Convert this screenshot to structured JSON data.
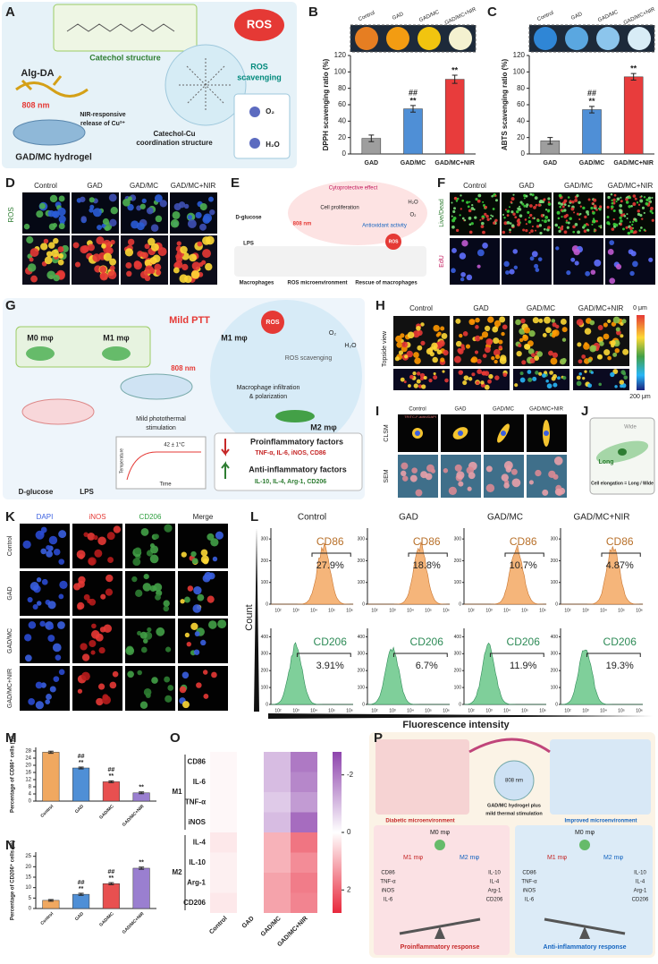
{
  "A": {
    "letter": "A",
    "labels": [
      "Alg-DA",
      "Catechol structure",
      "808 nm",
      "NIR-responsive",
      "release of Cu²⁺",
      "GAD/MC hydrogel",
      "Catechol-Cu",
      "coordination structure",
      "ROS",
      "ROS",
      "scavenging",
      "O₂",
      "H₂O"
    ]
  },
  "B": {
    "letter": "B",
    "type": "bar",
    "tubes": [
      "Control",
      "GAD",
      "GAD/MC",
      "GAD/MC+NIR"
    ],
    "categories": [
      "GAD",
      "GAD/MC",
      "GAD/MC+NIR"
    ],
    "values": [
      19,
      55,
      91
    ],
    "errors": [
      4,
      4,
      5
    ],
    "colors": [
      "#9e9e9e",
      "#4f8fd6",
      "#e83c3c"
    ],
    "ylim": [
      0,
      120
    ],
    "yticks": [
      0,
      20,
      40,
      60,
      80,
      100,
      120
    ],
    "ylabel": "DPPH scavenging ratio (%)",
    "hash": [
      null,
      "##",
      null
    ],
    "star": [
      null,
      "**",
      "**"
    ]
  },
  "C": {
    "letter": "C",
    "type": "bar",
    "tubes": [
      "Control",
      "GAD",
      "GAD/MC",
      "GAD/MC+NIR"
    ],
    "categories": [
      "GAD",
      "GAD/MC",
      "GAD/MC+NIR"
    ],
    "values": [
      16,
      54,
      94
    ],
    "errors": [
      4,
      4,
      4
    ],
    "colors": [
      "#9e9e9e",
      "#4f8fd6",
      "#e83c3c"
    ],
    "ylim": [
      0,
      120
    ],
    "yticks": [
      0,
      20,
      40,
      60,
      80,
      100,
      120
    ],
    "ylabel": "ABTS scavenging ratio (%)",
    "hash": [
      null,
      "##",
      null
    ],
    "star": [
      null,
      "**",
      "**"
    ]
  },
  "D": {
    "letter": "D",
    "columns": [
      "Control",
      "GAD",
      "GAD/MC",
      "GAD/MC+NIR"
    ],
    "row": "ROS"
  },
  "E": {
    "letter": "E",
    "labels": [
      "Cytoprotective effect",
      "Cell proliferation",
      "Antioxidant activity",
      "D-glucose",
      "LPS",
      "808 nm",
      "ROS",
      "Macrophages",
      "ROS microenvironment",
      "Rescue of macrophages",
      "H₂O",
      "O₂"
    ]
  },
  "F": {
    "letter": "F",
    "columns": [
      "Control",
      "GAD",
      "GAD/MC",
      "GAD/MC+NIR"
    ],
    "rows": [
      "Live/Dead",
      "EdU"
    ]
  },
  "G": {
    "letter": "G",
    "labels": [
      "M0 mφ",
      "M1 mφ",
      "808 nm",
      "Mild PTT",
      "M1 mφ",
      "ROS",
      "ROS scavenging",
      "O₂",
      "H₂O",
      "Macrophage infiltration",
      "& polarization",
      "M2 mφ",
      "D-glucose",
      "LPS",
      "Mild photothermal",
      "stimulation",
      "Temperature",
      "42 ± 1°C",
      "Time",
      "Proinflammatory factors",
      "TNF-α, IL-6, iNOS, CD86",
      "Anti-inflammatory factors",
      "IL-10, IL-4, Arg-1, CD206"
    ]
  },
  "H": {
    "letter": "H",
    "columns": [
      "Control",
      "GAD",
      "GAD/MC",
      "GAD/MC+NIR"
    ],
    "row": "Topside view",
    "scale": [
      "0 μm",
      "200 μm"
    ]
  },
  "I": {
    "letter": "I",
    "columns": [
      "Control",
      "GAD",
      "GAD/MC",
      "GAD/MC+NIR"
    ],
    "rows": [
      "CLSM",
      "SEM"
    ],
    "stain": "TRITC-F-actin/DAPI"
  },
  "J": {
    "letter": "J",
    "labels": [
      "Wide",
      "Long",
      "Cell elongation = Long / Wide"
    ]
  },
  "K": {
    "letter": "K",
    "columns": [
      "DAPI",
      "iNOS",
      "CD206",
      "Merge"
    ],
    "rows": [
      "Control",
      "GAD",
      "GAD/MC",
      "GAD/MC+NIR"
    ]
  },
  "L": {
    "letter": "L",
    "columns": [
      "Control",
      "GAD",
      "GAD/MC",
      "GAD/MC+NIR"
    ],
    "cd86_label": "CD86",
    "cd206_label": "CD206",
    "cd86": [
      "27.9%",
      "18.8%",
      "10.7%",
      "4.87%"
    ],
    "cd206": [
      "3.91%",
      "6.7%",
      "11.9%",
      "19.3%"
    ],
    "ylabel": "Count",
    "xlabel": "Fluorescence intensity",
    "xticks": [
      "10²",
      "10³",
      "10⁴",
      "10⁵",
      "10⁶"
    ],
    "ylim_top": [
      0,
      350
    ],
    "yticks_top": [
      0,
      100,
      200,
      300
    ],
    "ylim_bottom": [
      0,
      450
    ],
    "yticks_bottom": [
      0,
      100,
      200,
      300,
      400
    ]
  },
  "M": {
    "letter": "M",
    "type": "bar",
    "categories": [
      "Control",
      "GAD",
      "GAD/MC",
      "GAD/MC+NIR"
    ],
    "values": [
      27.3,
      18.5,
      10.8,
      4.6
    ],
    "errors": [
      0.6,
      0.5,
      0.5,
      0.5
    ],
    "colors": [
      "#f0a860",
      "#4f8fd6",
      "#e85050",
      "#9a7fd0"
    ],
    "ylim": [
      0,
      30
    ],
    "yticks": [
      0,
      4,
      8,
      12,
      16,
      20,
      24,
      28
    ],
    "ylabel": "Percentage of CD86⁺ cells (%)",
    "hash": [
      null,
      "##",
      "##",
      null
    ],
    "star": [
      null,
      "**",
      "**",
      "**"
    ]
  },
  "N": {
    "letter": "N",
    "type": "bar",
    "categories": [
      "Control",
      "GAD",
      "GAD/MC",
      "GAD/MC+NIR"
    ],
    "values": [
      3.9,
      6.8,
      11.9,
      19.3
    ],
    "errors": [
      0.4,
      0.5,
      0.5,
      0.5
    ],
    "colors": [
      "#f0a860",
      "#4f8fd6",
      "#e85050",
      "#9a7fd0"
    ],
    "ylim": [
      0,
      27
    ],
    "yticks": [
      0,
      5,
      10,
      15,
      20,
      25
    ],
    "ylabel": "Percentage of CD206⁺ cells (%)",
    "hash": [
      null,
      "##",
      "##",
      null
    ],
    "star": [
      null,
      "**",
      "**",
      "**"
    ]
  },
  "O": {
    "letter": "O",
    "type": "heatmap",
    "columns": [
      "Control",
      "GAD",
      "GAD/MC",
      "GAD/MC+NIR"
    ],
    "rows": [
      "CD86",
      "IL-6",
      "TNF-α",
      "iNOS",
      "IL-4",
      "IL-10",
      "Arg-1",
      "CD206"
    ],
    "groups": [
      "M1",
      "M2"
    ],
    "values": [
      [
        0.1,
        0,
        -1.0,
        -2.0
      ],
      [
        0.1,
        0,
        -1.0,
        -1.8
      ],
      [
        0.1,
        0,
        -0.8,
        -1.5
      ],
      [
        0.1,
        0,
        -1.0,
        -2.2
      ],
      [
        0.3,
        0,
        1.0,
        1.8
      ],
      [
        0.2,
        0,
        1.0,
        1.5
      ],
      [
        0.2,
        0,
        1.2,
        1.7
      ],
      [
        0.3,
        0,
        1.2,
        1.6
      ]
    ],
    "clim": [
      -2.8,
      2.8
    ],
    "cticks": [
      -2,
      0,
      2
    ]
  },
  "P": {
    "letter": "P",
    "labels": [
      "Diabetic microenvironment",
      "808 nm",
      "GAD/MC hydrogel plus",
      "mild thermal stimulation",
      "Improved microenvironment",
      "M0 mφ",
      "M1 mφ",
      "M2 mφ",
      "CD86",
      "TNF-α",
      "iNOS",
      "IL-6",
      "IL-10",
      "IL-4",
      "Arg-1",
      "CD206",
      "Proinflammatory response",
      "M0 mφ",
      "M1 mφ",
      "M2 mφ",
      "CD86",
      "TNF-α",
      "iNOS",
      "IL-6",
      "IL-10",
      "IL-4",
      "Arg-1",
      "CD206",
      "Anti-inflammatory response"
    ]
  }
}
